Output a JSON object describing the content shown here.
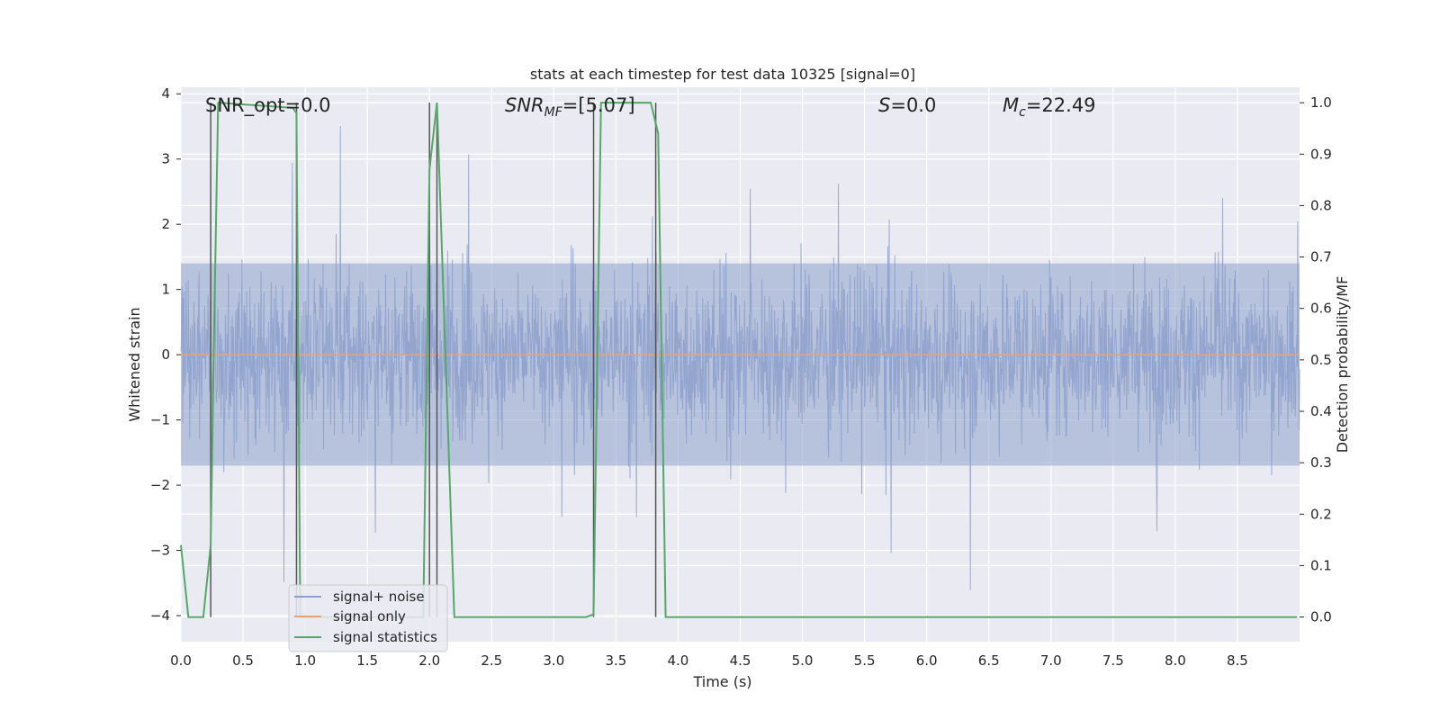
{
  "chart_data": {
    "type": "line",
    "title": "stats at each timestep for test data 10325 [signal=0]",
    "xlabel": "Time (s)",
    "ylabel_left": "Whitened strain",
    "ylabel_right": "Detection probability/MF",
    "xlim": [
      0.0,
      9.0
    ],
    "ylim_left": [
      -4.4,
      4.1
    ],
    "ylim_right": [
      -0.048,
      1.03
    ],
    "grid": true,
    "legend_placement": "lower-left",
    "xticks": [
      "0.0",
      "0.5",
      "1.0",
      "1.5",
      "2.0",
      "2.5",
      "3.0",
      "3.5",
      "4.0",
      "4.5",
      "5.0",
      "5.5",
      "6.0",
      "6.5",
      "7.0",
      "7.5",
      "8.0",
      "8.5"
    ],
    "yticks_left": [
      "4",
      "3",
      "2",
      "1",
      "0",
      "−1",
      "−2",
      "−3",
      "−4"
    ],
    "yticks_right": [
      "1.0",
      "0.9",
      "0.8",
      "0.7",
      "0.6",
      "0.5",
      "0.4",
      "0.3",
      "0.2",
      "0.1",
      "0.0"
    ],
    "annotations": {
      "snr_opt": "SNR_opt=0.0",
      "snr_mf_base": "SNR",
      "snr_mf_sub": "MF",
      "snr_mf_value": "=[5.07]",
      "s_symbol": "S",
      "s_value": "=0.0",
      "mc_base": "M",
      "mc_sub": "c",
      "mc_value": "=22.49"
    },
    "series": [
      {
        "name": "signal+ noise",
        "color": "#8da0cb",
        "kind": "noise",
        "typical_abs_range": [
          -1.7,
          1.4
        ],
        "peak_abs_range": [
          -4.0,
          3.8
        ]
      },
      {
        "name": "signal only",
        "color": "#e8a27a",
        "kind": "constant",
        "value": 0.0
      },
      {
        "name": "signal statistics",
        "color": "#55a868",
        "axis": "right",
        "x": [
          0.0,
          0.06,
          0.18,
          0.24,
          0.27,
          0.3,
          0.9,
          0.93,
          0.96,
          1.5,
          1.95,
          2.0,
          2.06,
          2.2,
          3.26,
          3.32,
          3.38,
          3.78,
          3.84,
          3.9,
          8.98
        ],
        "y": [
          0.14,
          0.0,
          0.0,
          0.14,
          0.6,
          1.0,
          0.99,
          0.98,
          0.0,
          0.0,
          0.0,
          0.87,
          1.0,
          0.0,
          0.0,
          0.005,
          1.0,
          1.0,
          0.94,
          0.0,
          0.0
        ]
      }
    ],
    "vlines": {
      "color": "#555555",
      "x": [
        0.24,
        0.93,
        2.0,
        2.06,
        3.32,
        3.82
      ],
      "y_range_right": [
        0.0,
        1.0
      ]
    }
  },
  "legend": {
    "items": [
      {
        "label": "signal+ noise",
        "color": "#8da0cb"
      },
      {
        "label": "signal only",
        "color": "#e8a27a"
      },
      {
        "label": "signal statistics",
        "color": "#55a868"
      }
    ]
  }
}
